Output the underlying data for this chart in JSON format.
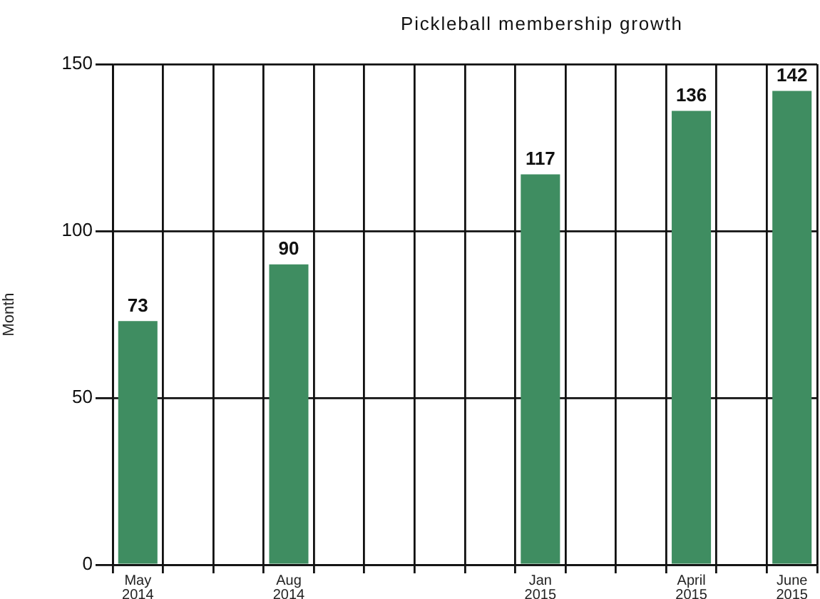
{
  "chart_data": {
    "type": "bar",
    "title": "Pickleball membership growth",
    "ylabel": "Month",
    "categories": [
      "May 2014",
      null,
      null,
      "Aug 2014",
      null,
      null,
      null,
      null,
      "Jan 2015",
      null,
      null,
      "April 2015",
      null,
      "June 2015"
    ],
    "values": [
      73,
      null,
      null,
      90,
      null,
      null,
      null,
      null,
      117,
      null,
      null,
      136,
      null,
      142
    ],
    "color": "#3f8d61",
    "ylim": [
      0,
      150
    ],
    "yticks": [
      0,
      50,
      100,
      150
    ],
    "grid": true,
    "data_labels": true
  }
}
